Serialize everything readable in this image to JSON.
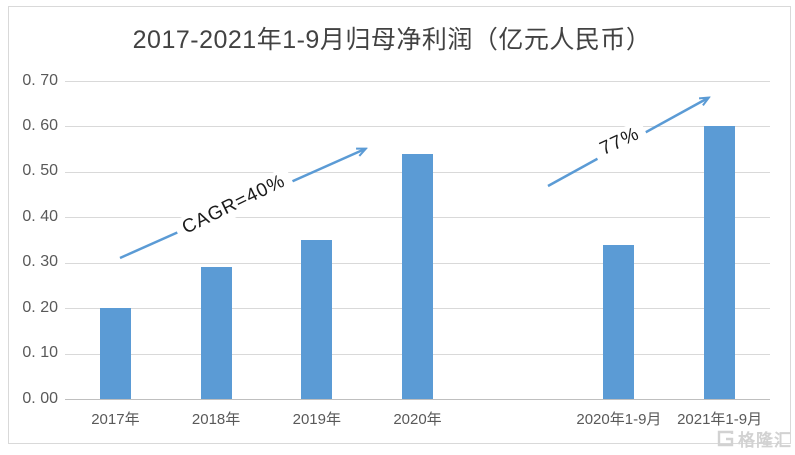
{
  "chart_data": {
    "type": "bar",
    "title": "2017-2021年1-9月归母净利润（亿元人民币）",
    "categories": [
      "2017年",
      "2018年",
      "2019年",
      "2020年",
      "",
      "2020年1-9月",
      "2021年1-9月"
    ],
    "values": [
      0.2,
      0.29,
      0.35,
      0.54,
      null,
      0.34,
      0.6
    ],
    "xlabel": "",
    "ylabel": "",
    "ylim": [
      0,
      0.7
    ],
    "ytick_interval": 0.1,
    "ytick_labels": [
      "0. 00",
      "0. 10",
      "0. 20",
      "0. 30",
      "0. 40",
      "0. 50",
      "0. 60",
      "0. 70"
    ],
    "grid": true,
    "legend": "none",
    "bar_color": "#5b9bd5",
    "arrow_color": "#5b9bd5",
    "annotations": [
      {
        "text": "CAGR=40%",
        "from_category": "2017年",
        "to_category": "2020年"
      },
      {
        "text": "77%",
        "from_category": "2020年1-9月",
        "to_category": "2021年1-9月"
      }
    ]
  },
  "watermark": {
    "logo": "gelonghui-logo",
    "text": "格隆汇"
  }
}
